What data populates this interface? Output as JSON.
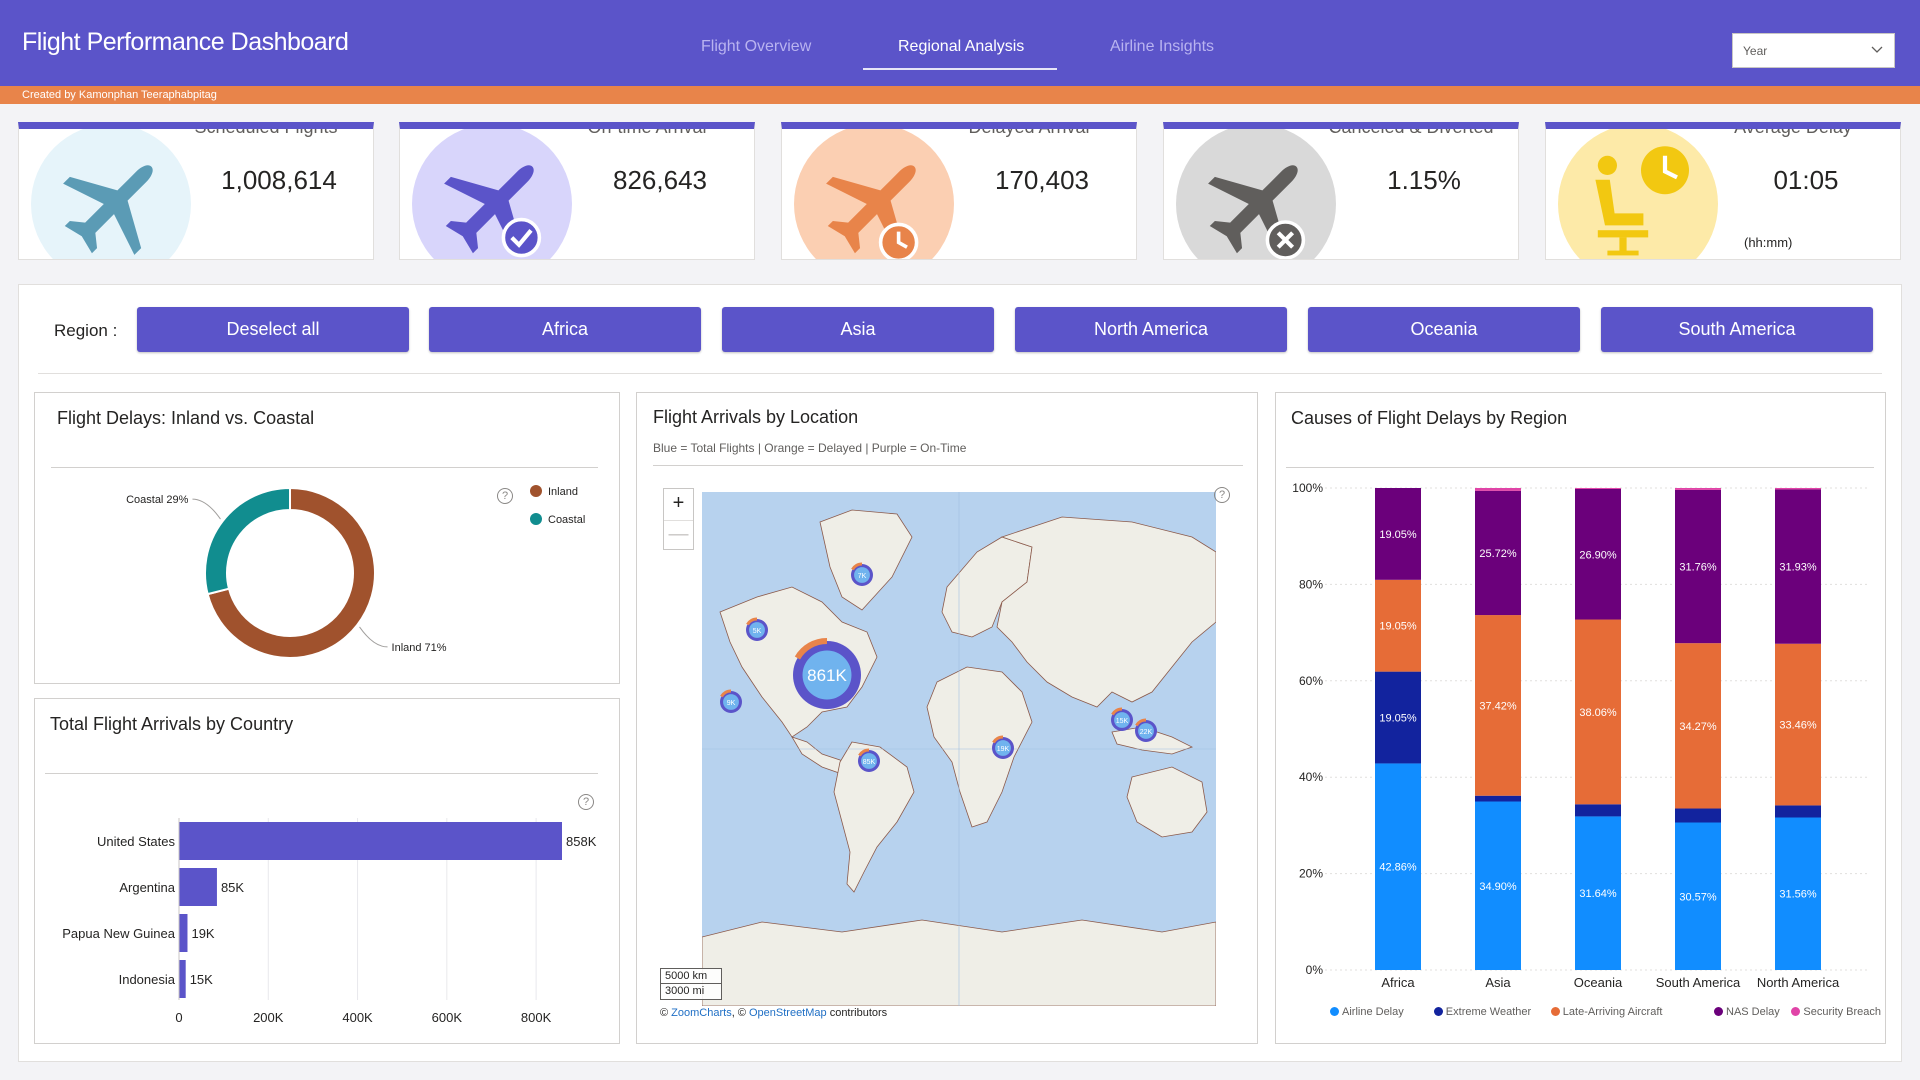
{
  "header": {
    "title": "Flight Performance Dashboard",
    "tabs": [
      {
        "label": "Flight Overview",
        "active": false
      },
      {
        "label": "Regional Analysis",
        "active": true
      },
      {
        "label": "Airline Insights",
        "active": false
      }
    ],
    "year_select": {
      "value": "Year"
    },
    "byline": "Created by Kamonphan Teeraphabpitag",
    "accent_color": "#5b54c9",
    "byline_color": "#e8844a"
  },
  "kpis": [
    {
      "label": "Scheduled Flights",
      "value": "1,008,614",
      "icon": "airplane-icon",
      "color": "#5b9bb5"
    },
    {
      "label": "On-time Arrival",
      "value": "826,643",
      "icon": "airplane-check-icon",
      "color": "#5b54c9"
    },
    {
      "label": "Delayed Arrival",
      "value": "170,403",
      "icon": "airplane-clock-icon",
      "color": "#e8844a"
    },
    {
      "label": "Canceled & Diverted",
      "value": "1.15%",
      "icon": "airplane-cancel-icon",
      "color": "#605e5c"
    },
    {
      "label": "Average Delay",
      "value": "01:05",
      "sub": "(hh:mm)",
      "icon": "waiting-person-clock-icon",
      "color": "#f2c811"
    }
  ],
  "region_slicer": {
    "label": "Region :",
    "buttons": [
      "Deselect all",
      "Africa",
      "Asia",
      "North America",
      "Oceania",
      "South America"
    ]
  },
  "donut": {
    "title": "Flight Delays: Inland vs. Coastal",
    "help": "?"
  },
  "bars": {
    "title": "Total Flight Arrivals by Country",
    "help": "?"
  },
  "map": {
    "title": "Flight Arrivals by Location",
    "subtitle": "Blue = Total Flights | Orange = Delayed | Purple = On-Time",
    "zoom_in": "+",
    "zoom_out": "—",
    "scale_km": "5000 km",
    "scale_mi": "3000 mi",
    "credit_prefix": "© ",
    "credit_zoom": "ZoomCharts",
    "credit_mid": ", © ",
    "credit_osm": "OpenStreetMap",
    "credit_suffix": " contributors",
    "help": "?",
    "bubbles": [
      {
        "label": "861K",
        "total": 861
      },
      {
        "label": "7K",
        "total": 7
      },
      {
        "label": "5K",
        "total": 5
      },
      {
        "label": "9K",
        "total": 9
      },
      {
        "label": "85K",
        "total": 85
      },
      {
        "label": "22K",
        "total": 22
      },
      {
        "label": "15K",
        "total": 15
      },
      {
        "label": "19K",
        "total": 19
      }
    ]
  },
  "stacked": {
    "title": "Causes of Flight Delays by Region"
  },
  "chart_data": [
    {
      "type": "pie",
      "title": "Flight Delays: Inland vs. Coastal",
      "donut": true,
      "slices": [
        {
          "name": "Inland",
          "value": 71,
          "label": "Inland 71%",
          "color": "#a0522d"
        },
        {
          "name": "Coastal",
          "value": 29,
          "label": "Coastal 29%",
          "color": "#118d8f"
        }
      ],
      "legend": [
        "Inland",
        "Coastal"
      ],
      "legend_position": "top-right"
    },
    {
      "type": "bar",
      "orientation": "horizontal",
      "title": "Total Flight Arrivals by Country",
      "categories": [
        "United States",
        "Argentina",
        "Papua New Guinea",
        "Indonesia"
      ],
      "values": [
        858,
        85,
        19,
        15
      ],
      "value_labels": [
        "858K",
        "85K",
        "19K",
        "15K"
      ],
      "xlim": [
        0,
        858
      ],
      "xticks": [
        0,
        200,
        400,
        600,
        800
      ],
      "xtick_labels": [
        "0",
        "200K",
        "400K",
        "600K",
        "800K"
      ],
      "color": "#5b54c9"
    },
    {
      "type": "bar",
      "stacked": true,
      "percent": true,
      "title": "Causes of Flight Delays by Region",
      "categories": [
        "Africa",
        "Asia",
        "Oceania",
        "South America",
        "North America"
      ],
      "yticks": [
        "0%",
        "20%",
        "40%",
        "60%",
        "80%",
        "100%"
      ],
      "series": [
        {
          "name": "Airline Delay",
          "color": "#118dff",
          "values": [
            42.86,
            34.9,
            31.64,
            30.57,
            31.56
          ],
          "labels": [
            "42.86%",
            "34.90%",
            "31.64%",
            "30.57%",
            "31.56%"
          ]
        },
        {
          "name": "Extreme Weather",
          "color": "#12239e",
          "values": [
            19.05,
            1.2,
            2.5,
            2.9,
            2.5
          ],
          "labels": [
            "19.05%",
            "",
            "",
            "",
            ""
          ]
        },
        {
          "name": "Late-Arriving Aircraft",
          "color": "#e66c37",
          "values": [
            19.05,
            37.42,
            38.06,
            34.27,
            33.46
          ],
          "labels": [
            "19.05%",
            "37.42%",
            "38.06%",
            "34.27%",
            "33.46%"
          ]
        },
        {
          "name": "NAS Delay",
          "color": "#6b007b",
          "values": [
            19.05,
            25.72,
            26.9,
            31.76,
            31.93
          ],
          "labels": [
            "19.05%",
            "25.72%",
            "26.90%",
            "31.76%",
            "31.93%"
          ]
        },
        {
          "name": "Security Breach",
          "color": "#e044a7",
          "values": [
            0,
            0.6,
            0.2,
            0.4,
            0.3
          ],
          "labels": [
            "",
            "",
            "",
            "",
            ""
          ]
        }
      ],
      "legend_position": "bottom"
    }
  ]
}
